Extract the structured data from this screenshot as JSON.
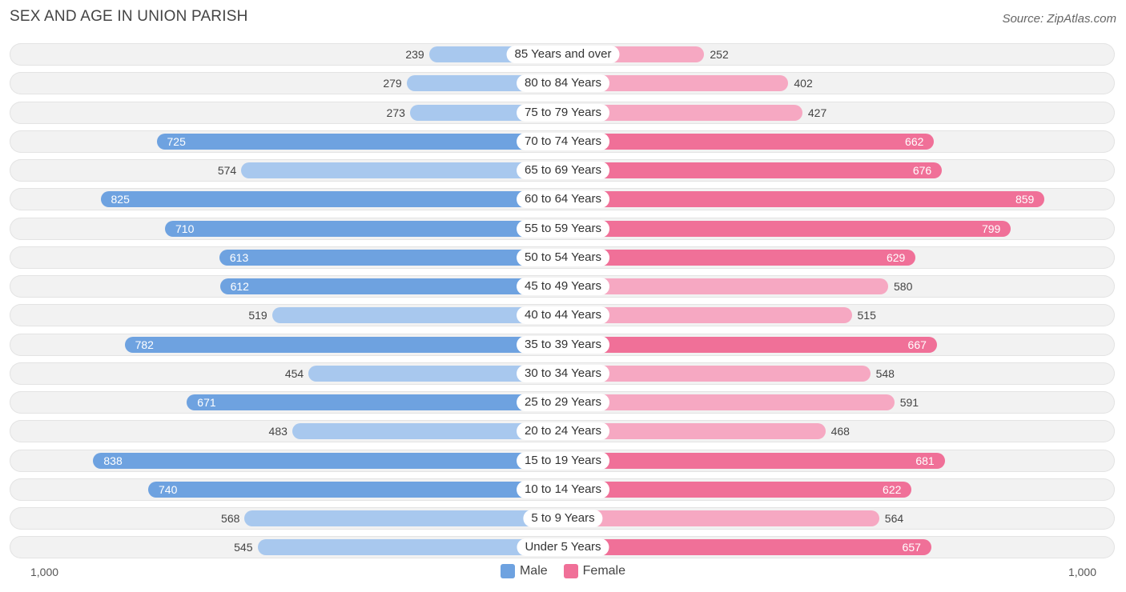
{
  "header": {
    "title": "SEX AND AGE IN UNION PARISH",
    "source": "Source: ZipAtlas.com"
  },
  "colors": {
    "male_dark": "#6ea2e0",
    "male_light": "#a8c8ee",
    "female_dark": "#f07098",
    "female_light": "#f6a8c2",
    "male_legend": "#6ea2e0",
    "female_legend": "#f07098"
  },
  "chart_data": {
    "type": "bar",
    "orientation": "horizontal-diverging",
    "categories": [
      "85 Years and over",
      "80 to 84 Years",
      "75 to 79 Years",
      "70 to 74 Years",
      "65 to 69 Years",
      "60 to 64 Years",
      "55 to 59 Years",
      "50 to 54 Years",
      "45 to 49 Years",
      "40 to 44 Years",
      "35 to 39 Years",
      "30 to 34 Years",
      "25 to 29 Years",
      "20 to 24 Years",
      "15 to 19 Years",
      "10 to 14 Years",
      "5 to 9 Years",
      "Under 5 Years"
    ],
    "series": [
      {
        "name": "Male",
        "values": [
          239,
          279,
          273,
          725,
          574,
          825,
          710,
          613,
          612,
          519,
          782,
          454,
          671,
          483,
          838,
          740,
          568,
          545
        ]
      },
      {
        "name": "Female",
        "values": [
          252,
          402,
          427,
          662,
          676,
          859,
          799,
          629,
          580,
          515,
          667,
          548,
          591,
          468,
          681,
          622,
          564,
          657
        ]
      }
    ],
    "xlim": [
      -1000,
      1000
    ],
    "axis_left_label": "1,000",
    "axis_right_label": "1,000",
    "legend": {
      "placement": "bottom-center",
      "items": [
        "Male",
        "Female"
      ]
    }
  }
}
